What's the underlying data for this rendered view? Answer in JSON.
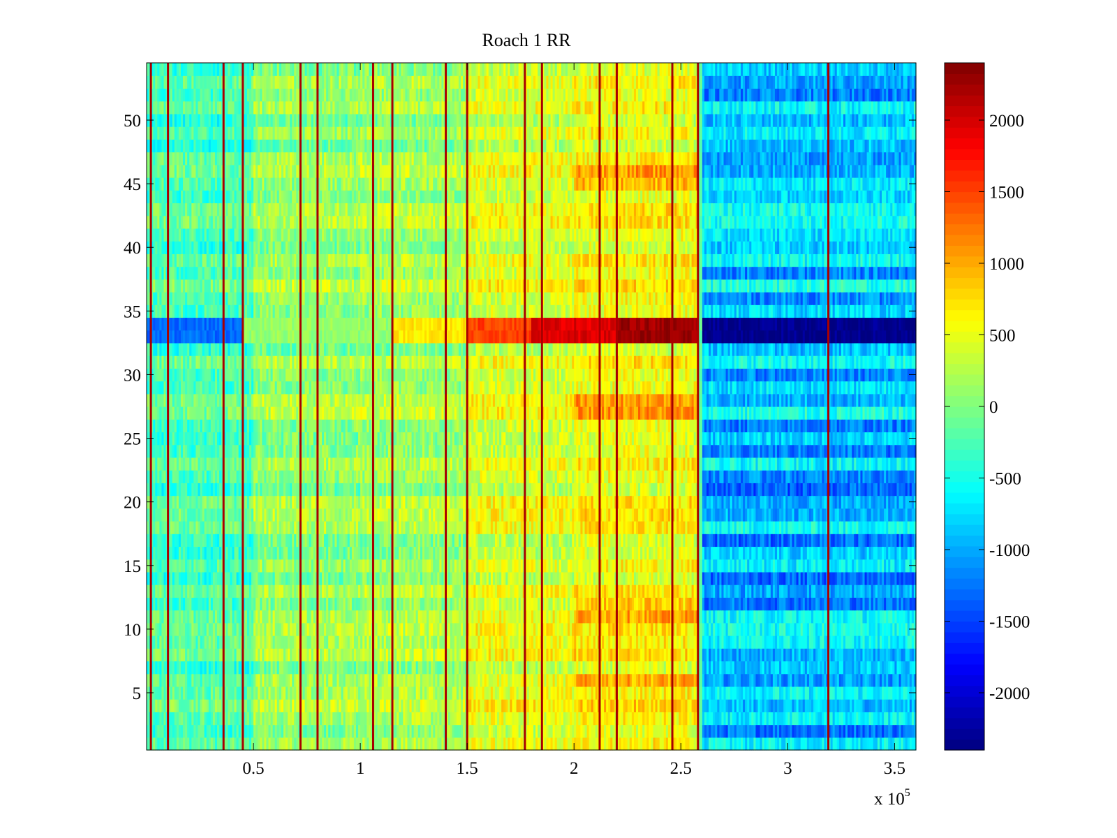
{
  "chart_data": {
    "type": "heatmap",
    "title": "Roach 1 RR",
    "xlabel": "",
    "ylabel": "",
    "x_multiplier_label": "x 10",
    "x_multiplier_exponent": "5",
    "xlim": [
      0,
      3.6
    ],
    "ylim": [
      0.5,
      54.5
    ],
    "rows": 54,
    "x_ticks": [
      {
        "value": 0.5,
        "label": "0.5"
      },
      {
        "value": 1,
        "label": "1"
      },
      {
        "value": 1.5,
        "label": "1.5"
      },
      {
        "value": 2,
        "label": "2"
      },
      {
        "value": 2.5,
        "label": "2.5"
      },
      {
        "value": 3,
        "label": "3"
      },
      {
        "value": 3.5,
        "label": "3.5"
      }
    ],
    "y_ticks": [
      {
        "value": 5,
        "label": "5"
      },
      {
        "value": 10,
        "label": "10"
      },
      {
        "value": 15,
        "label": "15"
      },
      {
        "value": 20,
        "label": "20"
      },
      {
        "value": 25,
        "label": "25"
      },
      {
        "value": 30,
        "label": "30"
      },
      {
        "value": 35,
        "label": "35"
      },
      {
        "value": 40,
        "label": "40"
      },
      {
        "value": 45,
        "label": "45"
      },
      {
        "value": 50,
        "label": "50"
      }
    ],
    "colorbar": {
      "colormap": "jet",
      "clim": [
        -2400,
        2400
      ],
      "ticks": [
        {
          "value": 2000,
          "label": "2000"
        },
        {
          "value": 1500,
          "label": "1500"
        },
        {
          "value": 1000,
          "label": "1000"
        },
        {
          "value": 500,
          "label": "500"
        },
        {
          "value": 0,
          "label": "0"
        },
        {
          "value": -500,
          "label": "-500"
        },
        {
          "value": -1000,
          "label": "-1000"
        },
        {
          "value": -1500,
          "label": "-1500"
        },
        {
          "value": -2000,
          "label": "-2000"
        }
      ]
    },
    "baseline_segments": [
      {
        "x_range": [
          0.0,
          0.5
        ],
        "value": -250
      },
      {
        "x_range": [
          0.5,
          1.0
        ],
        "value": 80
      },
      {
        "x_range": [
          1.0,
          1.5
        ],
        "value": 150
      },
      {
        "x_range": [
          1.5,
          2.0
        ],
        "value": 420
      },
      {
        "x_range": [
          2.0,
          2.58
        ],
        "value": 560
      },
      {
        "x_range": [
          2.6,
          3.6
        ],
        "value": -700
      }
    ],
    "highlight_row": {
      "rows": [
        33,
        34
      ],
      "segments": [
        {
          "x_range": [
            0.0,
            0.45
          ],
          "value": -1300
        },
        {
          "x_range": [
            0.45,
            1.15
          ],
          "value": 100
        },
        {
          "x_range": [
            1.15,
            1.5
          ],
          "value": 700
        },
        {
          "x_range": [
            1.5,
            1.8
          ],
          "value": 1500
        },
        {
          "x_range": [
            1.8,
            2.2
          ],
          "value": 1950
        },
        {
          "x_range": [
            2.2,
            2.58
          ],
          "value": 2250
        },
        {
          "x_range": [
            2.6,
            3.6
          ],
          "value": -2350
        }
      ]
    },
    "spike_columns_x": [
      0.02,
      0.1,
      0.36,
      0.45,
      0.72,
      0.8,
      1.06,
      1.15,
      1.4,
      1.5,
      1.77,
      1.85,
      2.12,
      2.2,
      2.46,
      2.58,
      3.19
    ],
    "spike_value": 2400
  }
}
